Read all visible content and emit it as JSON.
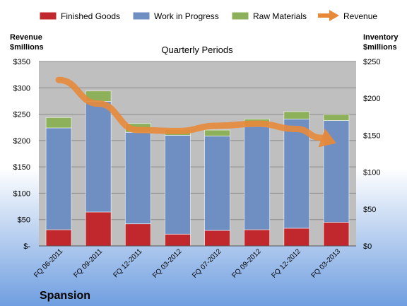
{
  "chart_data": {
    "type": "bar",
    "title": "Quarterly Periods",
    "categories": [
      "FQ 06-2011",
      "FQ 09-2011",
      "FQ 12-2011",
      "FQ 03-2012",
      "FQ 07-2012",
      "FQ 09-2012",
      "FQ 12-2012",
      "FQ 03-2013"
    ],
    "series": [
      {
        "name": "Finished Goods",
        "kind": "stacked-bar",
        "axis": "right",
        "color": "#c0282d",
        "values": [
          22,
          46,
          30,
          16,
          21,
          22,
          24,
          32
        ]
      },
      {
        "name": "Work in Progress",
        "kind": "stacked-bar",
        "axis": "right",
        "color": "#6f8fc3",
        "values": [
          138,
          150,
          124,
          134,
          128,
          140,
          148,
          138
        ]
      },
      {
        "name": "Raw Materials",
        "kind": "stacked-bar",
        "axis": "right",
        "color": "#8db05a",
        "values": [
          14,
          14,
          12,
          8,
          8,
          10,
          10,
          8
        ]
      },
      {
        "name": "Revenue",
        "kind": "arrow-line",
        "axis": "left",
        "color": "#e8893a",
        "values": [
          315,
          270,
          220,
          218,
          228,
          232,
          222,
          195
        ]
      }
    ],
    "left_axis": {
      "title_line1": "Revenue",
      "title_line2": "$millions",
      "min": 0,
      "max": 350,
      "step": 50,
      "tick_labels": [
        "$-",
        "$50",
        "$100",
        "$150",
        "$200",
        "$250",
        "$300",
        "$350"
      ]
    },
    "right_axis": {
      "title_line1": "Inventory",
      "title_line2": "$millions",
      "min": 0,
      "max": 250,
      "step": 50,
      "tick_labels": [
        "$0",
        "$50",
        "$100",
        "$150",
        "$200",
        "$250"
      ]
    },
    "grid": true,
    "legend_position": "top"
  },
  "company": "Spansion",
  "colors": {
    "plot_bg": "#bfbfbf",
    "grid": "#8a8a8a",
    "bg_top": "#ffffff",
    "bg_bottom": "#6f9ee0"
  }
}
